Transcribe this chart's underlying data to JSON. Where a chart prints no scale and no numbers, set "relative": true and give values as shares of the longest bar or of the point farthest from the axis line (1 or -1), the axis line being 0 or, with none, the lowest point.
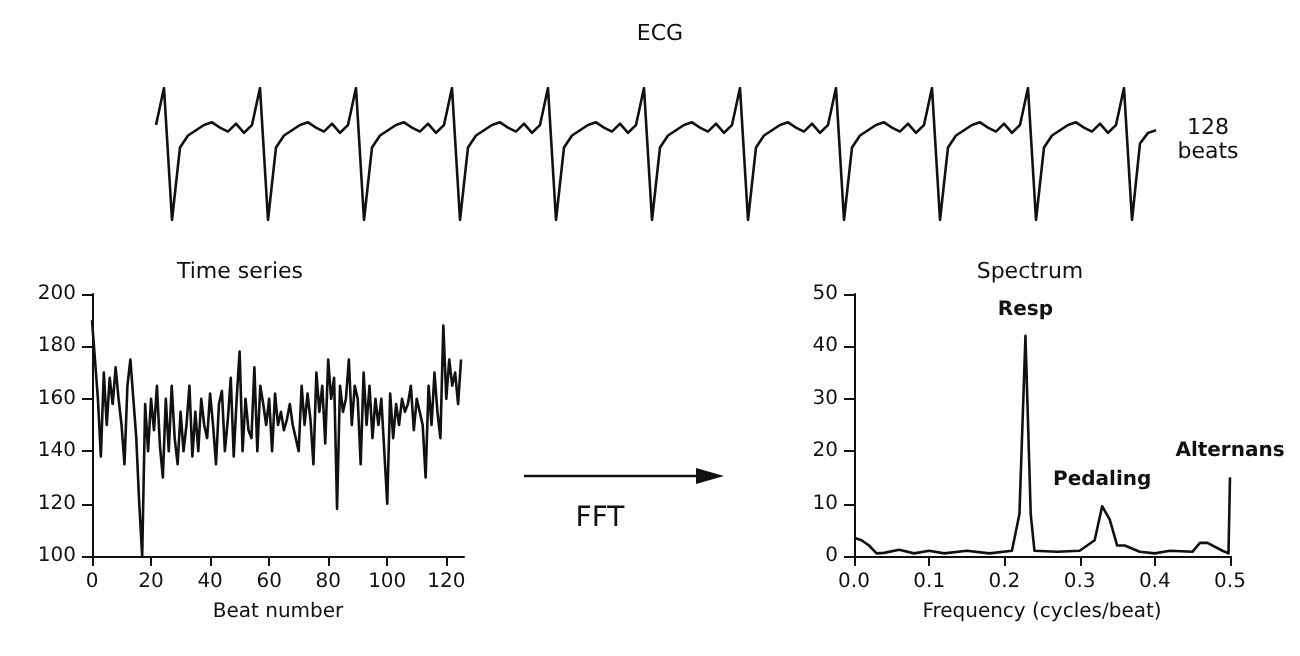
{
  "chart_data": [
    {
      "type": "line",
      "title": "ECG",
      "annotations": [
        "128 beats",
        "FFT"
      ],
      "relative": true,
      "marker": "none",
      "line_style": "solid",
      "categories": [
        null,
        null,
        null,
        null,
        null,
        null,
        null,
        null,
        null,
        null,
        null,
        null,
        null,
        null,
        null,
        null,
        null,
        null,
        null,
        null,
        null,
        null,
        null,
        null,
        null,
        null,
        null,
        null,
        null,
        null,
        null,
        null,
        null,
        null,
        null,
        null,
        null,
        null,
        null,
        null,
        null,
        null,
        null,
        null,
        null,
        null,
        null,
        null,
        null,
        null,
        null,
        null,
        null,
        null,
        null,
        null,
        null,
        null,
        null,
        null,
        null,
        null,
        null,
        null,
        null,
        null,
        null,
        null,
        null,
        null,
        null,
        null,
        null,
        null,
        null,
        null,
        null,
        null,
        null,
        null,
        null,
        null,
        null,
        null,
        null,
        null,
        null,
        null,
        null,
        null,
        null,
        null,
        null,
        null,
        null,
        null,
        null,
        null,
        null,
        null,
        null,
        null,
        null,
        null,
        null,
        null,
        null,
        null,
        null,
        null,
        null,
        null,
        null,
        null,
        null,
        null,
        null,
        null,
        null,
        null,
        null,
        null,
        null,
        null,
        null,
        null
      ],
      "series": [
        {
          "color": "#111111",
          "values": [
            0.72,
            1.0,
            0.0,
            0.55,
            0.64,
            0.68,
            0.72,
            0.74,
            0.7,
            0.67,
            0.73,
            0.66,
            0.72,
            1.0,
            0.0,
            0.55,
            0.64,
            0.68,
            0.72,
            0.74,
            0.7,
            0.67,
            0.73,
            0.66,
            0.72,
            1.0,
            0.0,
            0.55,
            0.64,
            0.68,
            0.72,
            0.74,
            0.7,
            0.67,
            0.73,
            0.66,
            0.72,
            1.0,
            0.0,
            0.55,
            0.64,
            0.68,
            0.72,
            0.74,
            0.7,
            0.67,
            0.73,
            0.66,
            0.72,
            1.0,
            0.0,
            0.55,
            0.64,
            0.68,
            0.72,
            0.74,
            0.7,
            0.67,
            0.73,
            0.66,
            0.72,
            1.0,
            0.0,
            0.55,
            0.64,
            0.68,
            0.72,
            0.74,
            0.7,
            0.67,
            0.73,
            0.66,
            0.72,
            1.0,
            0.0,
            0.55,
            0.64,
            0.68,
            0.72,
            0.74,
            0.7,
            0.67,
            0.73,
            0.66,
            0.72,
            1.0,
            0.0,
            0.55,
            0.64,
            0.68,
            0.72,
            0.74,
            0.7,
            0.67,
            0.73,
            0.66,
            0.72,
            1.0,
            0.0,
            0.55,
            0.64,
            0.68,
            0.72,
            0.74,
            0.7,
            0.67,
            0.73,
            0.66,
            0.72,
            1.0,
            0.0,
            0.55,
            0.64,
            0.68,
            0.72,
            0.74,
            0.7,
            0.67,
            0.73,
            0.66,
            0.72,
            1.0,
            0.0,
            0.58,
            0.66,
            0.68
          ]
        }
      ]
    },
    {
      "type": "line",
      "title": "Time series",
      "xlabel": "Beat number",
      "x": [
        0,
        1,
        2,
        3,
        4,
        5,
        6,
        7,
        8,
        9,
        10,
        11,
        12,
        13,
        14,
        15,
        16,
        17,
        18,
        19,
        20,
        21,
        22,
        23,
        24,
        25,
        26,
        27,
        28,
        29,
        30,
        31,
        32,
        33,
        34,
        35,
        36,
        37,
        38,
        39,
        40,
        41,
        42,
        43,
        44,
        45,
        46,
        47,
        48,
        49,
        50,
        51,
        52,
        53,
        54,
        55,
        56,
        57,
        58,
        59,
        60,
        61,
        62,
        63,
        64,
        65,
        66,
        67,
        68,
        69,
        70,
        71,
        72,
        73,
        74,
        75,
        76,
        77,
        78,
        79,
        80,
        81,
        82,
        83,
        84,
        85,
        86,
        87,
        88,
        89,
        90,
        91,
        92,
        93,
        94,
        95,
        96,
        97,
        98,
        99,
        100,
        101,
        102,
        103,
        104,
        105,
        106,
        107,
        108,
        109,
        110,
        111,
        112,
        113,
        114,
        115,
        116,
        117,
        118,
        119,
        120,
        121,
        122,
        123,
        124,
        125
      ],
      "series": [
        {
          "color": "#111111",
          "values": [
            190,
            175,
            160,
            138,
            170,
            150,
            168,
            158,
            172,
            160,
            150,
            135,
            165,
            175,
            160,
            145,
            120,
            100,
            158,
            140,
            160,
            148,
            165,
            142,
            130,
            160,
            140,
            165,
            145,
            135,
            155,
            140,
            150,
            165,
            138,
            155,
            140,
            160,
            150,
            145,
            162,
            150,
            135,
            158,
            163,
            140,
            152,
            168,
            138,
            160,
            178,
            140,
            160,
            148,
            145,
            172,
            140,
            165,
            158,
            150,
            160,
            140,
            162,
            150,
            155,
            148,
            152,
            158,
            150,
            145,
            140,
            165,
            150,
            162,
            152,
            135,
            170,
            155,
            165,
            143,
            175,
            160,
            168,
            118,
            165,
            155,
            160,
            175,
            150,
            165,
            160,
            135,
            170,
            150,
            165,
            145,
            160,
            150,
            160,
            140,
            120,
            162,
            145,
            158,
            150,
            160,
            155,
            158,
            165,
            148,
            160,
            155,
            150,
            130,
            165,
            150,
            170,
            155,
            145,
            188,
            160,
            175,
            165,
            170,
            158,
            175
          ]
        }
      ],
      "xlim": [
        0,
        126
      ],
      "xticks": [
        0,
        20,
        40,
        60,
        80,
        100,
        120
      ],
      "ylim": [
        100,
        200
      ],
      "yticks": [
        100,
        120,
        140,
        160,
        180,
        200
      ],
      "grid": false,
      "marker": "none",
      "line_style": "solid"
    },
    {
      "type": "line",
      "title": "Spectrum",
      "xlabel": "Frequency (cycles/beat)",
      "x": [
        0,
        0.01,
        0.02,
        0.03,
        0.04,
        0.06,
        0.08,
        0.1,
        0.12,
        0.15,
        0.18,
        0.21,
        0.22,
        0.228,
        0.235,
        0.24,
        0.27,
        0.3,
        0.32,
        0.33,
        0.34,
        0.35,
        0.36,
        0.38,
        0.4,
        0.42,
        0.45,
        0.46,
        0.47,
        0.49,
        0.498,
        0.5
      ],
      "series": [
        {
          "color": "#111111",
          "values": [
            3.5,
            3,
            2,
            0.5,
            0.6,
            1.2,
            0.5,
            1,
            0.5,
            1,
            0.5,
            1,
            8,
            42,
            8,
            1,
            0.8,
            1,
            3,
            9.5,
            7,
            2,
            2,
            0.8,
            0.5,
            1,
            0.8,
            2.5,
            2.5,
            1,
            0.5,
            15
          ]
        }
      ],
      "xlim": [
        0,
        0.5
      ],
      "xticks": [
        {
          "value": 0,
          "label": "0.0"
        },
        0.1,
        0.2,
        0.3,
        0.4,
        0.5
      ],
      "ylim": [
        0,
        50
      ],
      "yticks": [
        0,
        10,
        20,
        30,
        40,
        50
      ],
      "grid": false,
      "marker": "none",
      "line_style": "solid",
      "annotations": [
        {
          "text": "Resp",
          "x": 0.228,
          "y": 42
        },
        {
          "text": "Pedaling",
          "x": 0.33,
          "y": 9.5
        },
        {
          "text": "Alternans",
          "x": 0.5,
          "y": 15
        }
      ]
    }
  ]
}
